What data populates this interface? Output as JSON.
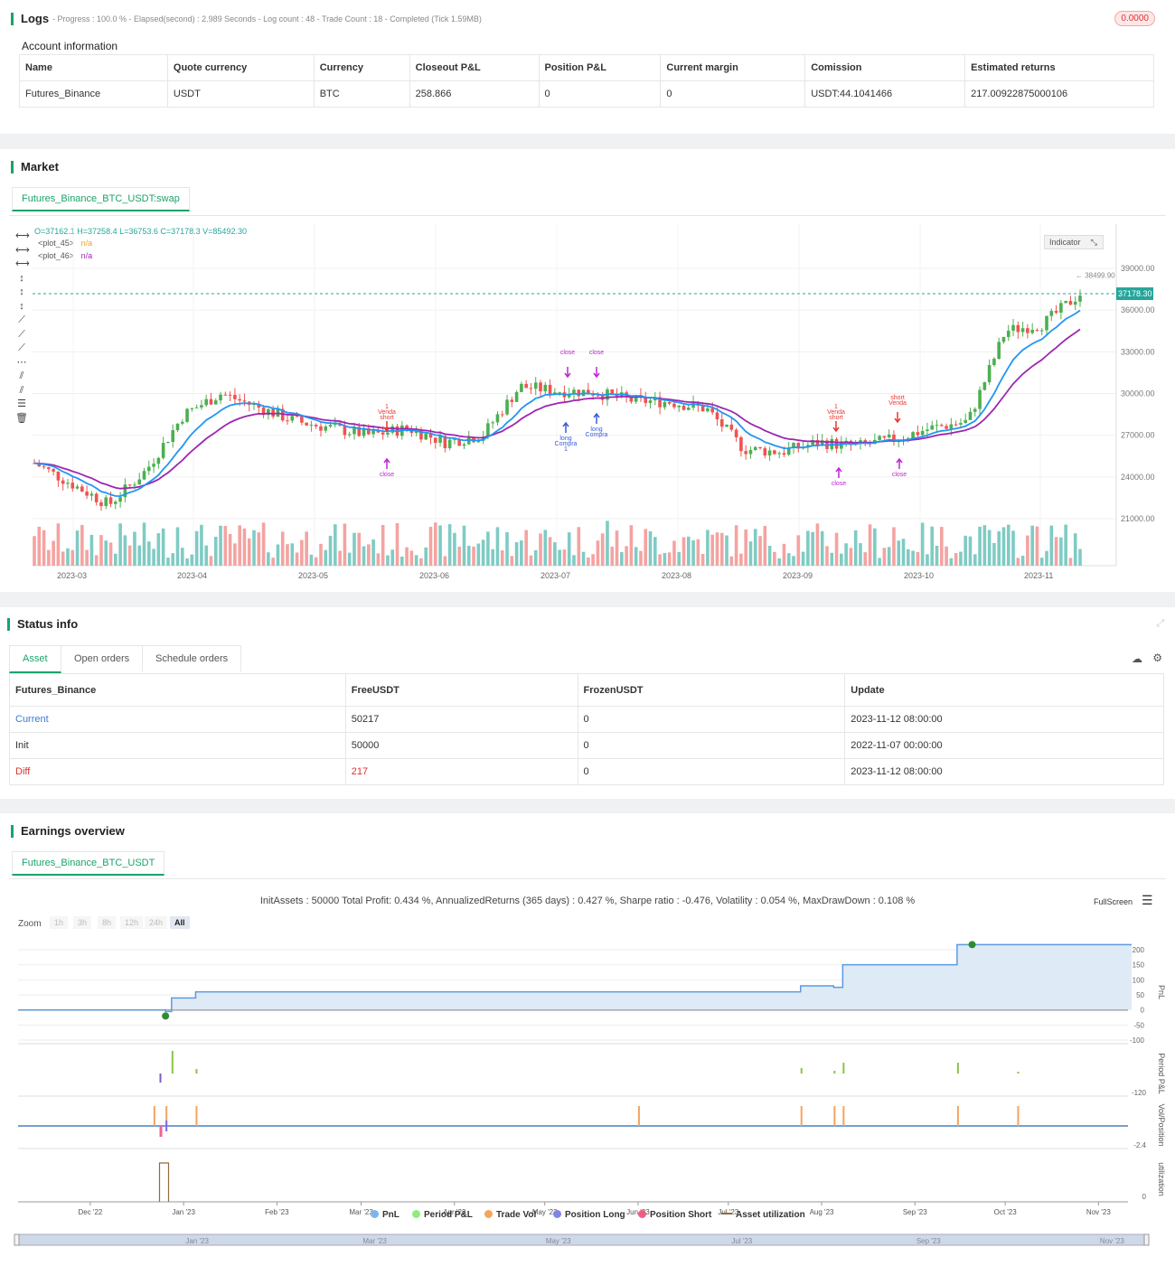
{
  "logs": {
    "title": "Logs",
    "meta": "- Progress : 100.0 % - Elapsed(second) : 2.989  Seconds - Log count : 48 - Trade Count : 18 - Completed (Tick 1.59MB)",
    "badge": "0.0000"
  },
  "account": {
    "title": "Account information",
    "headers": [
      "Name",
      "Quote currency",
      "Currency",
      "Closeout P&L",
      "Position P&L",
      "Current margin",
      "Comission",
      "Estimated returns"
    ],
    "row": [
      "Futures_Binance",
      "USDT",
      "BTC",
      "258.866",
      "0",
      "0",
      "USDT:44.1041466",
      "217.00922875000106"
    ]
  },
  "market": {
    "title": "Market",
    "tab": "Futures_Binance_BTC_USDT:swap",
    "ohlc": "O=37162.1 H=37258.4 L=36753.6 C=37178.3 V=85492.30",
    "plot45": "<plot_45>",
    "plot46": "<plot_46>",
    "na": "n/a",
    "indicator": "Indicator",
    "price_tag": "37178.30",
    "high_label": "38499.90",
    "y_ticks": [
      "39000.00",
      "36000.00",
      "33000.00",
      "30000.00",
      "27000.00",
      "24000.00",
      "21000.00"
    ],
    "x_ticks": [
      "2023-03",
      "2023-04",
      "2023-05",
      "2023-06",
      "2023-07",
      "2023-08",
      "2023-09",
      "2023-10",
      "2023-11"
    ],
    "marks": {
      "close": "close",
      "venda": "Venda",
      "short": "short",
      "long": "long",
      "compra": "Compra",
      "one": "1"
    },
    "colors": {
      "up": "#26a69a",
      "down": "#ef5350",
      "ema_fast": "#2196f3",
      "ema_slow": "#9c27b0"
    }
  },
  "chart_data": [
    {
      "type": "candlestick",
      "title": "",
      "ylim": [
        19000,
        40000
      ],
      "x_range": [
        "2023-02",
        "2023-11"
      ],
      "series": [
        {
          "values": [
            25000,
            23500,
            22000,
            24500,
            28500,
            30000,
            29000,
            28000,
            27500,
            27000,
            27500,
            26500,
            27000,
            30500,
            30200,
            30100,
            29500,
            29400,
            28900,
            26000,
            25800,
            26500,
            26200,
            26700,
            27500,
            28000,
            34500,
            35000,
            37178
          ]
        }
      ]
    },
    {
      "type": "area",
      "title": "",
      "ylabel": "PnL",
      "x_ticks": [
        "Dec '22",
        "Jan '23",
        "Feb '23",
        "Mar '23",
        "Apr '23",
        "May '23",
        "Jun '23",
        "Jul '23",
        "Aug '23",
        "Sep '23",
        "Oct '23",
        "Nov '23"
      ],
      "y_ticks": [
        "200",
        "150",
        "100",
        "50",
        "0",
        "-50",
        "-100"
      ],
      "ylim": [
        -120,
        220
      ],
      "x": [
        "2022-11-07",
        "2022-12-24",
        "2022-12-26",
        "2022-12-28",
        "2023-01-05",
        "2023-06-01",
        "2023-07-25",
        "2023-08-05",
        "2023-08-08",
        "2023-09-15",
        "2023-11-12"
      ],
      "values": [
        0,
        0,
        -5,
        40,
        60,
        60,
        80,
        75,
        150,
        217,
        217
      ]
    }
  ],
  "status": {
    "title": "Status info",
    "tabs": [
      "Asset",
      "Open orders",
      "Schedule orders"
    ],
    "headers": [
      "Futures_Binance",
      "FreeUSDT",
      "FrozenUSDT",
      "Update"
    ],
    "rows": [
      [
        "Current",
        "50217",
        "0",
        "2023-11-12 08:00:00"
      ],
      [
        "Init",
        "50000",
        "0",
        "2022-11-07 00:00:00"
      ],
      [
        "Diff",
        "217",
        "0",
        "2023-11-12 08:00:00"
      ]
    ]
  },
  "earnings": {
    "title": "Earnings overview",
    "tab": "Futures_Binance_BTC_USDT",
    "summary": "InitAssets : 50000 Total Profit: 0.434 %, AnnualizedReturns (365 days) : 0.427 %, Sharpe ratio : -0.476, Volatility : 0.054 %, MaxDrawDown : 0.108 %",
    "fullscreen": "FullScreen",
    "zoom": "Zoom",
    "zoom_opts": [
      "1h",
      "3h",
      "8h",
      "12h",
      "24h",
      "All"
    ],
    "axis_names": [
      "PnL",
      "Period P&L",
      "Vol/Position",
      "utilization"
    ],
    "y_min": [
      "-120",
      "-2.4",
      "0"
    ],
    "legend": [
      "PnL",
      "Period P&L",
      "Trade Vol",
      "Position Long",
      "Position Short",
      "Asset utilization"
    ],
    "nav_ticks": [
      "Jan '23",
      "Mar '23",
      "May '23",
      "Jul '23",
      "Sep '23",
      "Nov '23"
    ]
  }
}
